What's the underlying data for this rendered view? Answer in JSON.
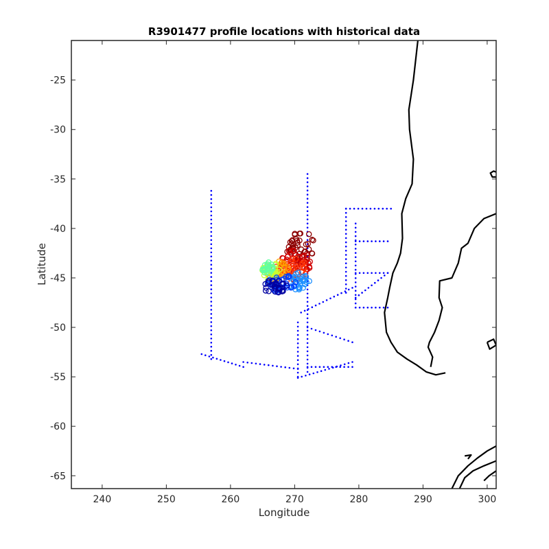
{
  "chart_data": {
    "type": "scatter",
    "title": "R3901477 profile locations with historical data",
    "xlabel": "Longitude",
    "ylabel": "Latitude",
    "xlim": [
      235.2,
      301.4
    ],
    "ylim": [
      -66.3,
      -21.0
    ],
    "xticks": [
      240,
      250,
      260,
      270,
      280,
      290,
      300
    ],
    "yticks": [
      -25,
      -30,
      -35,
      -40,
      -45,
      -50,
      -55,
      -60,
      -65
    ],
    "xtick_labels": [
      "240",
      "250",
      "260",
      "270",
      "280",
      "290",
      "300"
    ],
    "ytick_labels": [
      "-25",
      "-30",
      "-35",
      "-40",
      "-45",
      "-50",
      "-55",
      "-60",
      "-65"
    ],
    "grid": false,
    "colors": {
      "historical": "#0000ff",
      "coast": "#000000",
      "profiles_colormap": "jet"
    },
    "historical_tracks": [
      {
        "from": [
          257.0,
          -36.2
        ],
        "to": [
          257.0,
          -53.2
        ]
      },
      {
        "from": [
          255.5,
          -52.7
        ],
        "to": [
          262.0,
          -54.0
        ]
      },
      {
        "from": [
          262.0,
          -53.5
        ],
        "to": [
          270.5,
          -54.2
        ]
      },
      {
        "from": [
          272.0,
          -34.5
        ],
        "to": [
          272.0,
          -54.5
        ]
      },
      {
        "from": [
          270.5,
          -49.5
        ],
        "to": [
          270.5,
          -55.0
        ]
      },
      {
        "from": [
          270.5,
          -55.1
        ],
        "to": [
          279.0,
          -53.5
        ]
      },
      {
        "from": [
          272.0,
          -54.0
        ],
        "to": [
          279.0,
          -54.0
        ]
      },
      {
        "from": [
          272.0,
          -50.0
        ],
        "to": [
          279.0,
          -51.5
        ]
      },
      {
        "from": [
          271.0,
          -48.5
        ],
        "to": [
          279.0,
          -46.0
        ]
      },
      {
        "from": [
          278.0,
          -38.0
        ],
        "to": [
          278.0,
          -46.5
        ]
      },
      {
        "from": [
          278.0,
          -38.0
        ],
        "to": [
          285.0,
          -38.0
        ]
      },
      {
        "from": [
          279.5,
          -39.5
        ],
        "to": [
          279.5,
          -48.0
        ]
      },
      {
        "from": [
          279.5,
          -41.3
        ],
        "to": [
          284.5,
          -41.3
        ]
      },
      {
        "from": [
          279.5,
          -44.5
        ],
        "to": [
          284.5,
          -44.5
        ]
      },
      {
        "from": [
          279.5,
          -48.0
        ],
        "to": [
          284.5,
          -48.0
        ]
      },
      {
        "from": [
          279.5,
          -47.0
        ],
        "to": [
          284.5,
          -44.5
        ]
      }
    ],
    "profile_clusters": [
      {
        "lon": 270.8,
        "lat": -41.8,
        "rx": 2.3,
        "ry": 1.6,
        "color": "#8b0000"
      },
      {
        "lon": 270.3,
        "lat": -43.3,
        "rx": 2.4,
        "ry": 1.3,
        "color": "#d00000"
      },
      {
        "lon": 269.6,
        "lat": -44.2,
        "rx": 2.6,
        "ry": 1.2,
        "color": "#ff3000"
      },
      {
        "lon": 267.5,
        "lat": -44.3,
        "rx": 2.0,
        "ry": 1.0,
        "color": "#ffa000"
      },
      {
        "lon": 266.3,
        "lat": -44.4,
        "rx": 1.4,
        "ry": 1.0,
        "color": "#c8ff30"
      },
      {
        "lon": 265.8,
        "lat": -44.0,
        "rx": 0.9,
        "ry": 0.7,
        "color": "#60ffa0"
      },
      {
        "lon": 270.6,
        "lat": -45.3,
        "rx": 1.7,
        "ry": 0.9,
        "color": "#1e90ff"
      },
      {
        "lon": 267.9,
        "lat": -45.6,
        "rx": 2.4,
        "ry": 0.9,
        "color": "#0040ff"
      },
      {
        "lon": 266.9,
        "lat": -45.9,
        "rx": 1.9,
        "ry": 0.7,
        "color": "#0000a0"
      }
    ],
    "coastlines": [
      [
        [
          289.2,
          -21.0
        ],
        [
          288.5,
          -25.0
        ],
        [
          287.8,
          -28.0
        ],
        [
          287.9,
          -30.0
        ],
        [
          288.5,
          -33.0
        ],
        [
          288.3,
          -35.5
        ],
        [
          287.3,
          -37.0
        ],
        [
          286.7,
          -38.5
        ],
        [
          286.8,
          -41.0
        ],
        [
          286.5,
          -42.5
        ],
        [
          286.0,
          -43.5
        ],
        [
          285.3,
          -44.5
        ],
        [
          284.8,
          -46.0
        ],
        [
          284.5,
          -47.0
        ],
        [
          284.0,
          -48.5
        ],
        [
          284.3,
          -50.5
        ],
        [
          285.0,
          -51.5
        ],
        [
          286.0,
          -52.5
        ],
        [
          287.5,
          -53.2
        ],
        [
          289.0,
          -53.8
        ],
        [
          290.5,
          -54.5
        ],
        [
          292.0,
          -54.8
        ],
        [
          293.5,
          -54.6
        ]
      ],
      [
        [
          301.4,
          -38.5
        ],
        [
          299.5,
          -39.0
        ],
        [
          298.0,
          -40.0
        ],
        [
          297.0,
          -41.5
        ],
        [
          296.0,
          -42.0
        ],
        [
          295.5,
          -43.5
        ],
        [
          294.5,
          -45.0
        ],
        [
          292.6,
          -45.3
        ],
        [
          292.5,
          -47.0
        ],
        [
          293.0,
          -48.0
        ],
        [
          292.5,
          -49.3
        ],
        [
          291.8,
          -50.5
        ],
        [
          291.0,
          -51.5
        ],
        [
          290.8,
          -52.0
        ],
        [
          291.5,
          -53.0
        ],
        [
          291.2,
          -54.0
        ]
      ],
      [
        [
          301.4,
          -34.8
        ],
        [
          300.8,
          -34.8
        ],
        [
          300.5,
          -34.4
        ],
        [
          301.0,
          -34.2
        ],
        [
          301.4,
          -34.3
        ]
      ],
      [
        [
          301.4,
          -62.0
        ],
        [
          300.0,
          -62.5
        ],
        [
          298.5,
          -63.2
        ],
        [
          297.0,
          -64.0
        ],
        [
          295.5,
          -65.0
        ],
        [
          294.5,
          -66.3
        ]
      ],
      [
        [
          301.4,
          -63.5
        ],
        [
          299.5,
          -64.0
        ],
        [
          297.8,
          -64.5
        ],
        [
          296.5,
          -65.2
        ],
        [
          295.7,
          -66.3
        ]
      ],
      [
        [
          301.4,
          -64.5
        ],
        [
          300.3,
          -65.0
        ],
        [
          299.5,
          -65.5
        ]
      ],
      [
        [
          300.0,
          -51.5
        ],
        [
          301.0,
          -51.2
        ],
        [
          301.4,
          -51.8
        ],
        [
          300.4,
          -52.2
        ],
        [
          300.0,
          -51.5
        ]
      ],
      [
        [
          296.5,
          -63.0
        ],
        [
          297.5,
          -62.9
        ],
        [
          297.0,
          -63.3
        ]
      ]
    ]
  }
}
